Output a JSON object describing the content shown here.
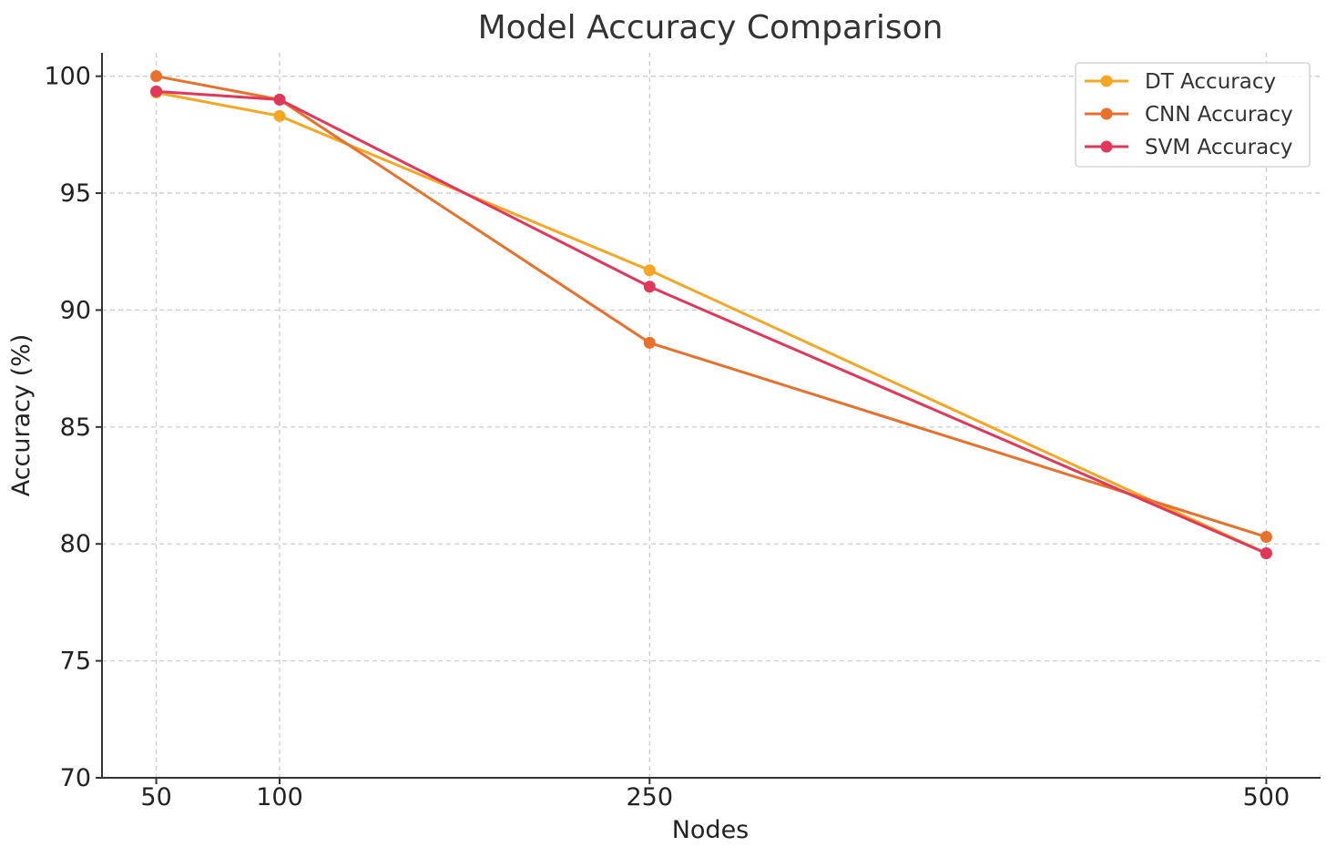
{
  "chart_data": {
    "type": "line",
    "title": "Model Accuracy Comparison",
    "xlabel": "Nodes",
    "ylabel": "Accuracy (%)",
    "x": [
      50,
      100,
      250,
      500
    ],
    "x_ticks": [
      50,
      100,
      250,
      500
    ],
    "y_ticks": [
      70,
      75,
      80,
      85,
      90,
      95,
      100
    ],
    "xlim": [
      28,
      522
    ],
    "ylim": [
      70,
      101
    ],
    "grid": true,
    "legend_position": "top-right",
    "series": [
      {
        "name": "DT Accuracy",
        "color": "#f5a623",
        "values": [
          99.3,
          98.3,
          91.7,
          79.6
        ]
      },
      {
        "name": "CNN Accuracy",
        "color": "#e8702a",
        "values": [
          100.0,
          99.0,
          88.6,
          80.3
        ]
      },
      {
        "name": "SVM Accuracy",
        "color": "#e0375a",
        "values": [
          99.35,
          99.0,
          91.0,
          79.6
        ]
      }
    ]
  }
}
